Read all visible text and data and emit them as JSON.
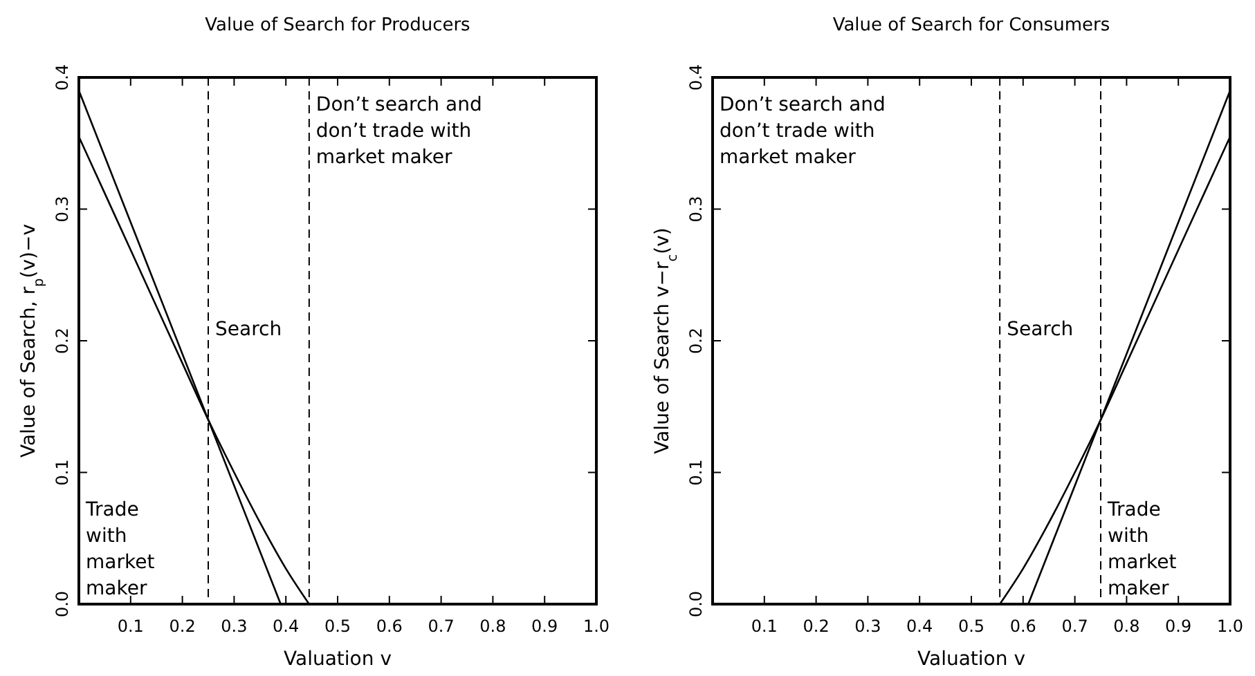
{
  "chart_data": [
    {
      "type": "line",
      "title": "Value of Search for Producers",
      "xlabel": "Valuation v",
      "ylabel": "Value of Search, r$_{p}$(v)−v",
      "xlim": [
        0,
        1
      ],
      "ylim": [
        0,
        0.4
      ],
      "xticks": [
        0.1,
        0.2,
        0.3,
        0.4,
        0.5,
        0.6,
        0.7,
        0.8,
        0.9,
        {
          "value": 1,
          "label": "1.0"
        }
      ],
      "yticks": [
        {
          "value": 0,
          "label": "0.0"
        },
        0.1,
        0.2,
        0.3,
        0.4
      ],
      "grid": false,
      "line_style": "solid",
      "series": [
        {
          "color": "#000000",
          "x": [
            0,
            0.25,
            0.39
          ],
          "values": [
            0.39,
            0.14,
            0
          ]
        },
        {
          "color": "#000000",
          "x": [
            0,
            0.05,
            0.1,
            0.15,
            0.2,
            0.25,
            0.3,
            0.35,
            0.4,
            0.445
          ],
          "values": [
            0.355,
            0.312,
            0.269,
            0.226,
            0.183,
            0.14,
            0.1,
            0.062,
            0.027,
            0
          ]
        }
      ],
      "ref_lines": [
        {
          "axis": "x",
          "value": 0.25,
          "color": "#000000",
          "line_style": "dashed"
        },
        {
          "axis": "x",
          "value": 0.445,
          "color": "#000000",
          "line_style": "dashed"
        }
      ],
      "annotations": [
        "Trade\nwith\nmarket\nmaker",
        "Search",
        "Don’t search and\ndon’t trade with\nmarket maker"
      ]
    },
    {
      "type": "line",
      "title": "Value of Search for Consumers",
      "xlabel": "Valuation v",
      "ylabel": "Value of Search v−r$_{c}$(v)",
      "xlim": [
        0,
        1
      ],
      "ylim": [
        0,
        0.4
      ],
      "xticks": [
        0.1,
        0.2,
        0.3,
        0.4,
        0.5,
        0.6,
        0.7,
        0.8,
        0.9,
        {
          "value": 1,
          "label": "1.0"
        }
      ],
      "yticks": [
        {
          "value": 0,
          "label": "0.0"
        },
        0.1,
        0.2,
        0.3,
        0.4
      ],
      "grid": false,
      "line_style": "solid",
      "series": [
        {
          "color": "#000000",
          "x": [
            0.61,
            0.75,
            1
          ],
          "values": [
            0,
            0.14,
            0.39
          ]
        },
        {
          "color": "#000000",
          "x": [
            0.555,
            0.6,
            0.65,
            0.7,
            0.75,
            0.8,
            0.85,
            0.9,
            0.95,
            1
          ],
          "values": [
            0,
            0.027,
            0.062,
            0.1,
            0.14,
            0.183,
            0.226,
            0.269,
            0.312,
            0.355
          ]
        }
      ],
      "ref_lines": [
        {
          "axis": "x",
          "value": 0.555,
          "color": "#000000",
          "line_style": "dashed"
        },
        {
          "axis": "x",
          "value": 0.75,
          "color": "#000000",
          "line_style": "dashed"
        }
      ],
      "annotations": [
        "Don’t search and\ndon’t trade with\nmarket maker",
        "Search",
        "Trade\nwith\nmarket\nmaker"
      ]
    }
  ]
}
